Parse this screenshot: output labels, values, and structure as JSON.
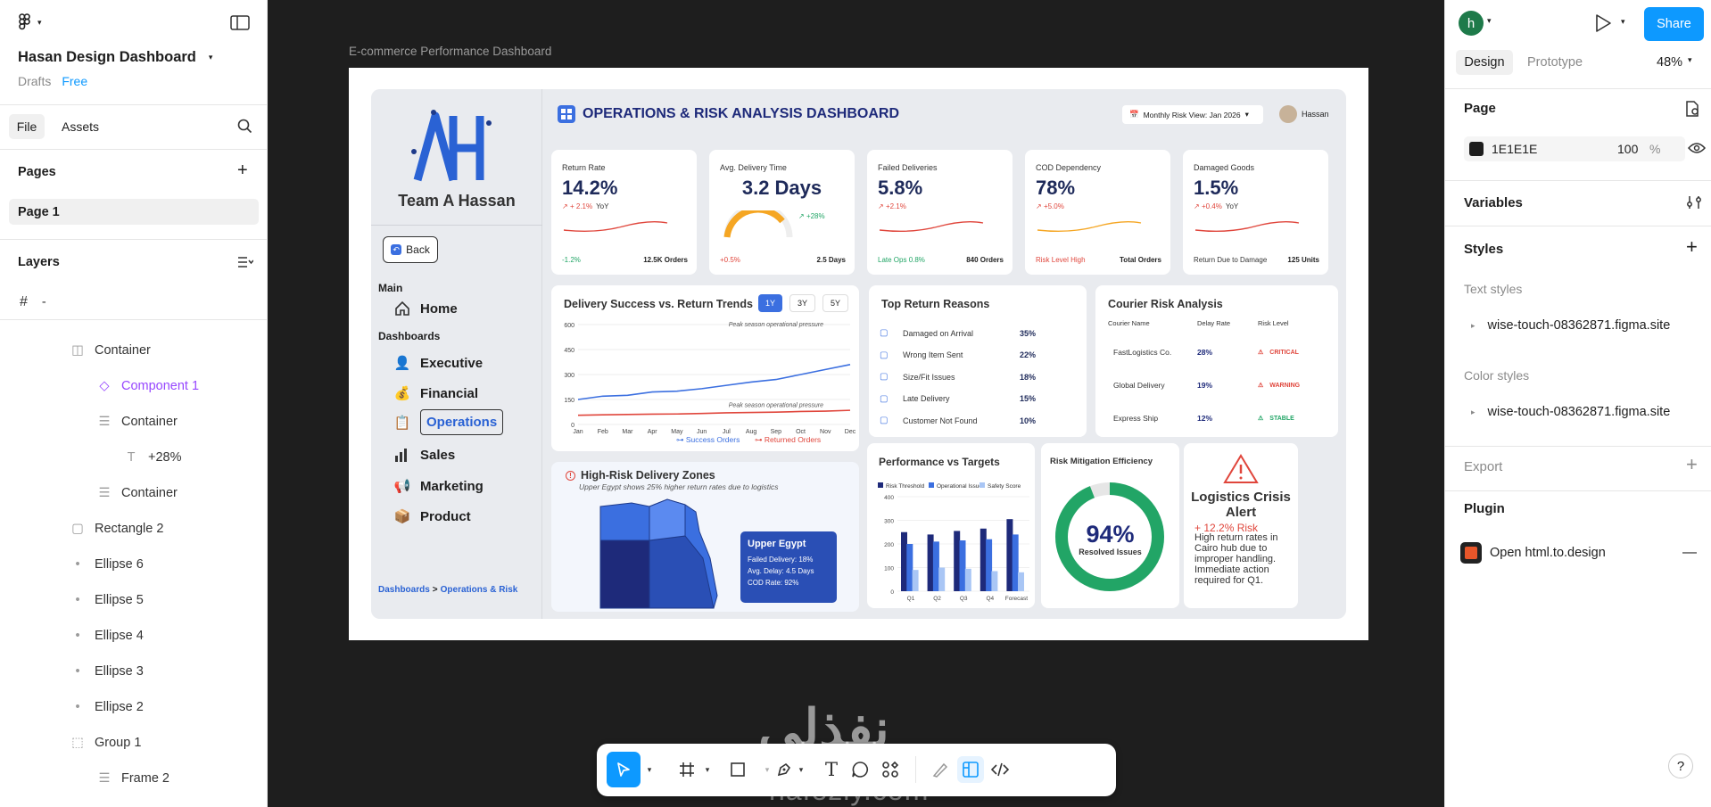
{
  "left": {
    "file_title": "Hasan Design Dashboard",
    "drafts": "Drafts",
    "plan": "Free",
    "tabs": [
      "File",
      "Assets"
    ],
    "pages_label": "Pages",
    "page1": "Page 1",
    "layers_label": "Layers",
    "frame_name": "-",
    "layers": [
      {
        "name": "Container",
        "icon": "auto-layout-icon"
      },
      {
        "name": "Component 1",
        "icon": "component-icon"
      },
      {
        "name": "Container",
        "icon": "frame-icon"
      },
      {
        "name": "+28%",
        "icon": "text-icon"
      },
      {
        "name": "Container",
        "icon": "frame-icon"
      },
      {
        "name": "Rectangle 2",
        "icon": "rectangle-icon"
      },
      {
        "name": "Ellipse 6",
        "icon": "ellipse-icon"
      },
      {
        "name": "Ellipse 5",
        "icon": "ellipse-icon"
      },
      {
        "name": "Ellipse 4",
        "icon": "ellipse-icon"
      },
      {
        "name": "Ellipse 3",
        "icon": "ellipse-icon"
      },
      {
        "name": "Ellipse 2",
        "icon": "ellipse-icon"
      },
      {
        "name": "Group 1",
        "icon": "group-icon"
      },
      {
        "name": "Frame 2",
        "icon": "frame-icon"
      }
    ]
  },
  "canvas": {
    "frame_label": "E-commerce Performance Dashboard",
    "watermark_ar": "نفذلي",
    "watermark_en": "nafezly.com"
  },
  "dash": {
    "brand": "Team A Hassan",
    "back": "Back",
    "main_label": "Main",
    "home": "Home",
    "dashboards_label": "Dashboards",
    "nav": [
      "Executive",
      "Financial",
      "Operations",
      "Sales",
      "Marketing",
      "Product"
    ],
    "breadcrumb_a": "Dashboards",
    "breadcrumb_sep": ">",
    "breadcrumb_b": "Operations & Risk",
    "title": "OPERATIONS & RISK ANALYSIS DASHBOARD",
    "risk_view": "Monthly Risk View: Jan 2026",
    "user": "Hassan",
    "kpis": [
      {
        "label": "Return Rate",
        "value": "14.2%",
        "delta": "+ 2.1%",
        "delta_suffix": "YoY",
        "foot_left": "-1.2%",
        "foot_right": "12.5K Orders"
      },
      {
        "label": "Avg. Delivery Time",
        "value": "3.2 Days",
        "delta": "+28%",
        "delta_suffix": "",
        "foot_left": "+0.5%",
        "foot_right": "2.5 Days"
      },
      {
        "label": "Failed Deliveries",
        "value": "5.8%",
        "delta": "+2.1%",
        "delta_suffix": "",
        "foot_left": "Late Ops 0.8%",
        "foot_right": "840 Orders"
      },
      {
        "label": "COD Dependency",
        "value": "78%",
        "delta": "+5.0%",
        "delta_suffix": "",
        "foot_left": "Risk Level High",
        "foot_right": "Total Orders"
      },
      {
        "label": "Damaged Goods",
        "value": "1.5%",
        "delta": "+0.4%",
        "delta_suffix": "YoY",
        "foot_left": "Return Due to Damage",
        "foot_right": "125 Units"
      }
    ],
    "trend": {
      "title": "Delivery Success vs. Return Trends",
      "ranges": [
        "1Y",
        "3Y",
        "5Y"
      ],
      "note1": "Peak season operational pressure",
      "note2": "Peak season operational pressure"
    },
    "reasons": {
      "title": "Top Return Reasons",
      "items": [
        {
          "name": "Damaged on Arrival",
          "pct": "35%"
        },
        {
          "name": "Wrong Item Sent",
          "pct": "22%"
        },
        {
          "name": "Size/Fit Issues",
          "pct": "18%"
        },
        {
          "name": "Late Delivery",
          "pct": "15%"
        },
        {
          "name": "Customer Not Found",
          "pct": "10%"
        }
      ]
    },
    "courier": {
      "title": "Courier Risk Analysis",
      "cols": [
        "Courier Name",
        "Delay Rate",
        "Risk Level"
      ],
      "rows": [
        {
          "name": "FastLogistics Co.",
          "rate": "28%",
          "risk": "CRITICAL",
          "color": "#e0463c"
        },
        {
          "name": "Global Delivery",
          "rate": "19%",
          "risk": "WARNING",
          "color": "#e0463c"
        },
        {
          "name": "Express Ship",
          "rate": "12%",
          "risk": "STABLE",
          "color": "#22a566"
        }
      ]
    },
    "zones": {
      "title": "High-Risk Delivery Zones",
      "subtitle": "Upper Egypt shows 25% higher return rates due to logistics",
      "tip_title": "Upper Egypt",
      "tip_lines": [
        "Failed Delivery: 18%",
        "Avg. Delay: 4.5 Days",
        "COD Rate: 92%"
      ]
    },
    "perf": {
      "title": "Performance vs Targets"
    },
    "mitigation": {
      "title": "Risk Mitigation Efficiency",
      "value": "94%",
      "label": "Resolved Issues",
      "fraction": 0.94
    },
    "alert": {
      "title": "Logistics Crisis Alert",
      "risk": "+ 12.2% Risk",
      "body": "High return rates in Cairo hub due to improper handling. Immediate action required for Q1."
    }
  },
  "chart_data": [
    {
      "type": "line",
      "title": "Delivery Success vs. Return Trends",
      "categories": [
        "Jan",
        "Feb",
        "Mar",
        "Apr",
        "May",
        "Jun",
        "Jul",
        "Aug",
        "Sep",
        "Oct",
        "Nov",
        "Dec"
      ],
      "ylim": [
        0,
        600
      ],
      "yticks": [
        0,
        150,
        300,
        450,
        600
      ],
      "series": [
        {
          "name": "Success Orders",
          "color": "#3b6fe0",
          "values": [
            150,
            170,
            175,
            195,
            200,
            215,
            235,
            255,
            270,
            300,
            330,
            360
          ]
        },
        {
          "name": "Returned Orders",
          "color": "#e0463c",
          "values": [
            55,
            58,
            60,
            62,
            63,
            66,
            70,
            72,
            74,
            78,
            80,
            85
          ]
        }
      ]
    },
    {
      "type": "bar",
      "title": "Performance vs Targets",
      "categories": [
        "Q1",
        "Q2",
        "Q3",
        "Q4",
        "Forecast"
      ],
      "ylim": [
        0,
        400
      ],
      "yticks": [
        0,
        100,
        200,
        300,
        400
      ],
      "series": [
        {
          "name": "Risk Threshold",
          "color": "#1e2a7a",
          "values": [
            250,
            240,
            255,
            265,
            305
          ]
        },
        {
          "name": "Operational Issues",
          "color": "#3b6fe0",
          "values": [
            200,
            210,
            215,
            220,
            240
          ]
        },
        {
          "name": "Safety Score",
          "color": "#a9c6f5",
          "values": [
            90,
            100,
            95,
            85,
            80
          ]
        }
      ]
    },
    {
      "type": "pie",
      "title": "Risk Mitigation Efficiency",
      "values": [
        94,
        6
      ],
      "labels": [
        "Resolved Issues",
        ""
      ]
    }
  ],
  "right": {
    "avatar": "h",
    "share": "Share",
    "tabs": [
      "Design",
      "Prototype"
    ],
    "zoom": "48%",
    "page_label": "Page",
    "bg_hex": "1E1E1E",
    "bg_opacity": "100",
    "pct": "%",
    "variables": "Variables",
    "styles": "Styles",
    "text_styles": "Text styles",
    "text_style_item": "wise-touch-08362871.figma.site",
    "color_styles": "Color styles",
    "color_style_item": "wise-touch-08362871.figma.site",
    "export": "Export",
    "plugin": "Plugin",
    "plugin_item": "Open html.to.design",
    "help": "?"
  }
}
